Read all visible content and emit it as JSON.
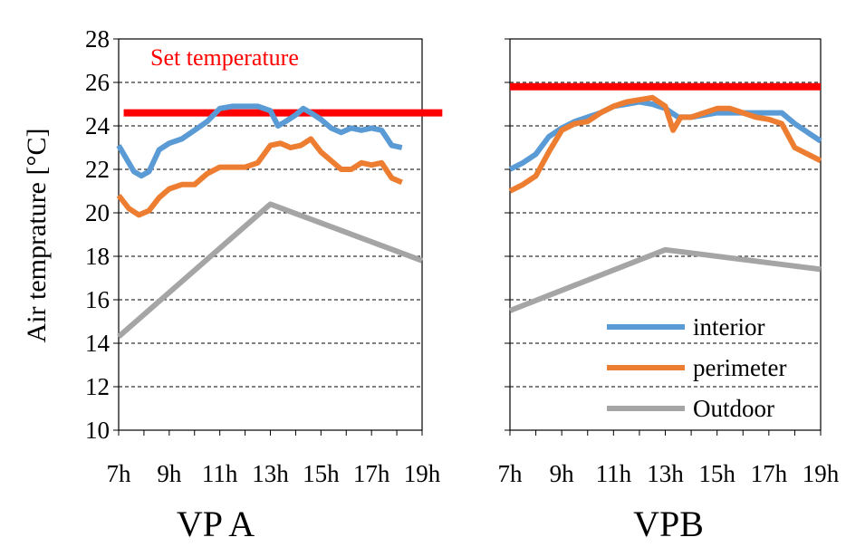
{
  "chart_data": [
    {
      "type": "line",
      "title": "VP A",
      "ylabel": "Air temprature [°C]",
      "xlabel": "",
      "xlim": [
        7,
        19
      ],
      "ylim": [
        10,
        28
      ],
      "yticks": [
        "10",
        "12",
        "14",
        "16",
        "18",
        "20",
        "22",
        "24",
        "26",
        "28"
      ],
      "xticks": [
        "7h",
        "9h",
        "11h",
        "13h",
        "15h",
        "17h",
        "19h"
      ],
      "grid": "horizontal dashed",
      "annotation": "Set temperature",
      "colors": {
        "interior": "#5B9BD5",
        "perimeter": "#ED7D31",
        "outdoor": "#A5A5A5",
        "setpoint": "#FF0000"
      },
      "setpoint": {
        "value": 24.6,
        "x": [
          7.2,
          19.8
        ]
      },
      "series": [
        {
          "key": "interior",
          "x": [
            7,
            7.3,
            7.6,
            7.9,
            8.2,
            8.6,
            9,
            9.5,
            10,
            10.5,
            11,
            11.5,
            12,
            12.5,
            13,
            13.3,
            13.6,
            14,
            14.3,
            14.6,
            15,
            15.4,
            15.8,
            16.2,
            16.6,
            17,
            17.4,
            17.8,
            18.2
          ],
          "y": [
            23.1,
            22.5,
            21.9,
            21.7,
            21.9,
            22.9,
            23.2,
            23.4,
            23.8,
            24.2,
            24.8,
            24.9,
            24.9,
            24.9,
            24.7,
            24.0,
            24.2,
            24.5,
            24.8,
            24.6,
            24.3,
            23.9,
            23.7,
            23.9,
            23.8,
            23.9,
            23.8,
            23.1,
            23.0
          ]
        },
        {
          "key": "perimeter",
          "x": [
            7,
            7.4,
            7.8,
            8.2,
            8.6,
            9,
            9.5,
            10,
            10.5,
            11,
            11.5,
            12,
            12.5,
            13,
            13.4,
            13.8,
            14.2,
            14.6,
            15,
            15.4,
            15.8,
            16.2,
            16.6,
            17,
            17.4,
            17.8,
            18.2
          ],
          "y": [
            20.8,
            20.2,
            19.9,
            20.1,
            20.7,
            21.1,
            21.3,
            21.3,
            21.8,
            22.1,
            22.1,
            22.1,
            22.3,
            23.1,
            23.2,
            23.0,
            23.1,
            23.4,
            22.8,
            22.4,
            22.0,
            22.0,
            22.3,
            22.2,
            22.3,
            21.6,
            21.4
          ]
        },
        {
          "key": "outdoor",
          "x": [
            7,
            13,
            19
          ],
          "y": [
            14.3,
            20.4,
            17.8
          ]
        }
      ]
    },
    {
      "type": "line",
      "title": "VPB",
      "xlabel": "",
      "xlim": [
        7,
        19
      ],
      "ylim": [
        10,
        28
      ],
      "xticks": [
        "7h",
        "9h",
        "11h",
        "13h",
        "15h",
        "17h",
        "19h"
      ],
      "grid": "horizontal dashed",
      "setpoint": {
        "value": 25.8,
        "x": [
          7,
          19
        ]
      },
      "legend": {
        "placement": "bottom-right",
        "entries": [
          "interior",
          "perimeter",
          "Outdoor"
        ]
      },
      "series": [
        {
          "name": "interior",
          "key": "interior",
          "x": [
            7,
            7.5,
            8,
            8.5,
            9,
            9.5,
            10,
            10.5,
            11,
            11.5,
            12,
            12.5,
            13,
            13.5,
            14,
            14.5,
            15,
            15.5,
            16,
            16.5,
            17,
            17.5,
            18,
            18.5,
            19
          ],
          "y": [
            22.0,
            22.3,
            22.7,
            23.5,
            23.9,
            24.2,
            24.4,
            24.6,
            24.9,
            25.0,
            25.1,
            25.0,
            24.8,
            24.4,
            24.4,
            24.5,
            24.6,
            24.6,
            24.6,
            24.6,
            24.6,
            24.6,
            24.1,
            23.7,
            23.3
          ]
        },
        {
          "name": "perimeter",
          "key": "perimeter",
          "x": [
            7,
            7.5,
            8,
            8.5,
            9,
            9.5,
            10,
            10.5,
            11,
            11.5,
            12,
            12.5,
            13,
            13.3,
            13.6,
            14,
            14.5,
            15,
            15.5,
            16,
            16.5,
            17,
            17.5,
            18,
            18.5,
            19
          ],
          "y": [
            21.0,
            21.3,
            21.7,
            22.8,
            23.8,
            24.1,
            24.2,
            24.6,
            24.9,
            25.1,
            25.2,
            25.3,
            24.9,
            23.8,
            24.4,
            24.4,
            24.6,
            24.8,
            24.8,
            24.6,
            24.4,
            24.3,
            24.1,
            23.0,
            22.7,
            22.4
          ]
        },
        {
          "name": "Outdoor",
          "key": "outdoor",
          "x": [
            7,
            13,
            19
          ],
          "y": [
            15.5,
            18.3,
            17.4
          ]
        }
      ]
    }
  ]
}
